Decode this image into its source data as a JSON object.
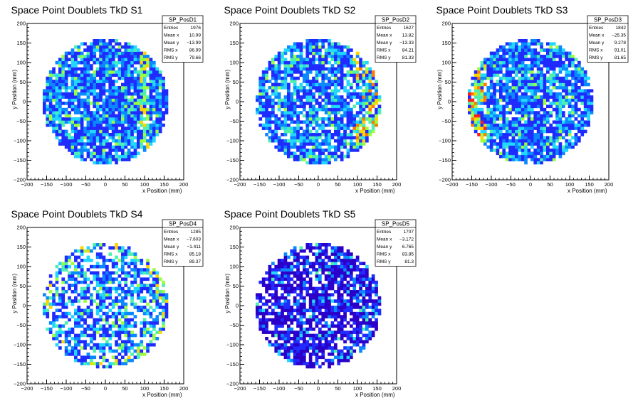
{
  "chart_data": [
    {
      "type": "heatmap",
      "title": "Space Point Doublets TkD S1",
      "xlabel": "x Position (mm)",
      "ylabel": "y Position (mm)",
      "xlim": [
        -200,
        200
      ],
      "ylim": [
        -200,
        200
      ],
      "ticks": [
        "−200",
        "−150",
        "−100",
        "−50",
        "0",
        "50",
        "100",
        "150",
        "200"
      ],
      "stats": {
        "name": "SP_PosD1",
        "rows": [
          [
            "Entries",
            "1976"
          ],
          [
            "Mean x",
            "10.99"
          ],
          [
            "Mean y",
            "−13.99"
          ],
          [
            "RMS x",
            "86.99"
          ],
          [
            "RMS y",
            "79.66"
          ]
        ]
      },
      "radius": 160,
      "fill_fraction": 0.88,
      "hot_zone": "vertical band near x=100"
    },
    {
      "type": "heatmap",
      "title": "Space Point Doublets TkD S2",
      "xlabel": "x Position (mm)",
      "ylabel": "y Position (mm)",
      "xlim": [
        -200,
        200
      ],
      "ylim": [
        -200,
        200
      ],
      "ticks": [
        "−200",
        "−150",
        "−100",
        "−50",
        "0",
        "50",
        "100",
        "150",
        "200"
      ],
      "stats": {
        "name": "SP_PosD2",
        "rows": [
          [
            "Entries",
            "1627"
          ],
          [
            "Mean x",
            "13.82"
          ],
          [
            "Mean y",
            "−13.33"
          ],
          [
            "RMS x",
            "84.21"
          ],
          [
            "RMS y",
            "81.33"
          ]
        ]
      },
      "radius": 160,
      "fill_fraction": 0.8,
      "hot_zone": "right edge"
    },
    {
      "type": "heatmap",
      "title": "Space Point Doublets TkD S3",
      "xlabel": "x Position (mm)",
      "ylabel": "y Position (mm)",
      "xlim": [
        -200,
        200
      ],
      "ylim": [
        -200,
        200
      ],
      "ticks": [
        "−200",
        "−150",
        "−100",
        "−50",
        "0",
        "50",
        "100",
        "150",
        "200"
      ],
      "stats": {
        "name": "SP_PosD3",
        "rows": [
          [
            "Entries",
            "1842"
          ],
          [
            "Mean x",
            "−25.35"
          ],
          [
            "Mean y",
            "9.278"
          ],
          [
            "RMS x",
            "91.01"
          ],
          [
            "RMS y",
            "81.65"
          ]
        ]
      },
      "radius": 160,
      "fill_fraction": 0.85,
      "hot_zone": "left edge"
    },
    {
      "type": "heatmap",
      "title": "Space Point Doublets TkD S4",
      "xlabel": "x Position (mm)",
      "ylabel": "y Position (mm)",
      "xlim": [
        -200,
        200
      ],
      "ylim": [
        -200,
        200
      ],
      "ticks": [
        "−200",
        "−150",
        "−100",
        "−50",
        "0",
        "50",
        "100",
        "150",
        "200"
      ],
      "stats": {
        "name": "SP_PosD4",
        "rows": [
          [
            "Entries",
            "1285"
          ],
          [
            "Mean x",
            "−7.603"
          ],
          [
            "Mean y",
            "−1.411"
          ],
          [
            "RMS x",
            "85.18"
          ],
          [
            "RMS y",
            "89.37"
          ]
        ]
      },
      "radius": 160,
      "fill_fraction": 0.62,
      "hot_zone": "sparse"
    },
    {
      "type": "heatmap",
      "title": "Space Point Doublets TkD S5",
      "xlabel": "x Position (mm)",
      "ylabel": "y Position (mm)",
      "xlim": [
        -200,
        200
      ],
      "ylim": [
        -200,
        200
      ],
      "ticks": [
        "−200",
        "−150",
        "−100",
        "−50",
        "0",
        "50",
        "100",
        "150",
        "200"
      ],
      "stats": {
        "name": "SP_PosD5",
        "rows": [
          [
            "Entries",
            "1707"
          ],
          [
            "Mean x",
            "−3.172"
          ],
          [
            "Mean y",
            "6.765"
          ],
          [
            "RMS x",
            "83.85"
          ],
          [
            "RMS y",
            "81.3"
          ]
        ]
      },
      "radius": 160,
      "fill_fraction": 0.75,
      "hot_zone": "violet dominated"
    }
  ],
  "colors": {
    "background": "#ffffff",
    "axis": "#000000",
    "palette": [
      "#2b00c8",
      "#1f2bff",
      "#0a88ff",
      "#22d7ff",
      "#4ef0b0",
      "#9cff3e",
      "#ffd400",
      "#ff7a00",
      "#ff1e1e"
    ]
  }
}
